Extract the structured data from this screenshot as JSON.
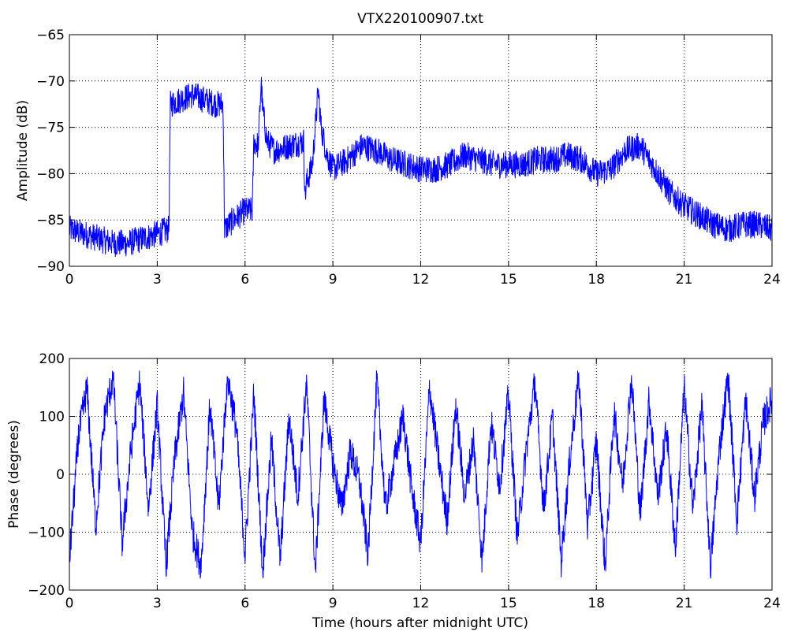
{
  "figure": {
    "title": "VTX220100907.txt",
    "xlabel": "Time (hours after midnight UTC)"
  },
  "chart_data": [
    {
      "type": "line",
      "ylabel": "Amplitude (dB)",
      "xlim": [
        0,
        24
      ],
      "ylim": [
        -90,
        -65
      ],
      "xticks": [
        0,
        3,
        6,
        9,
        12,
        15,
        18,
        21,
        24
      ],
      "yticks": [
        -90,
        -85,
        -80,
        -75,
        -70,
        -65
      ],
      "grid": true,
      "series": [
        {
          "color": "#0000ff",
          "x": [
            0,
            0.5,
            1.0,
            1.5,
            2.0,
            2.5,
            3.0,
            3.4,
            3.45,
            3.8,
            4.2,
            4.6,
            5.0,
            5.25,
            5.3,
            5.6,
            6.0,
            6.25,
            6.3,
            6.45,
            6.55,
            6.6,
            6.75,
            7.0,
            7.5,
            8.0,
            8.05,
            8.1,
            8.3,
            8.45,
            8.5,
            8.6,
            8.8,
            9.0,
            9.5,
            10.0,
            10.5,
            11.0,
            11.5,
            12.0,
            12.5,
            13.0,
            13.5,
            14.0,
            14.5,
            15.0,
            15.5,
            16.0,
            16.5,
            17.0,
            17.5,
            18.0,
            18.5,
            19.0,
            19.5,
            20.0,
            20.5,
            21.0,
            21.5,
            22.0,
            22.5,
            23.0,
            23.5,
            24.0
          ],
          "y": [
            -86.0,
            -86.5,
            -87.0,
            -87.5,
            -87.5,
            -87.0,
            -86.5,
            -86.0,
            -72.5,
            -72.0,
            -71.5,
            -72.0,
            -72.5,
            -72.5,
            -86.0,
            -85.0,
            -84.0,
            -84.0,
            -76.5,
            -77.0,
            -70.0,
            -73.0,
            -76.5,
            -77.5,
            -77.0,
            -76.5,
            -82.5,
            -81.0,
            -79.0,
            -73.0,
            -71.0,
            -75.0,
            -78.0,
            -79.5,
            -78.5,
            -77.0,
            -77.5,
            -78.5,
            -79.0,
            -79.5,
            -79.5,
            -79.0,
            -78.0,
            -78.5,
            -79.0,
            -79.0,
            -79.0,
            -78.5,
            -78.5,
            -78.0,
            -78.5,
            -80.0,
            -79.5,
            -77.5,
            -77.0,
            -79.5,
            -82.0,
            -83.5,
            -84.5,
            -85.5,
            -86.0,
            -85.5,
            -85.5,
            -86.0
          ],
          "noise_amplitude_db": 1.5
        }
      ]
    },
    {
      "type": "line",
      "ylabel": "Phase (degrees)",
      "xlim": [
        0,
        24
      ],
      "ylim": [
        -200,
        200
      ],
      "xticks": [
        0,
        3,
        6,
        9,
        12,
        15,
        18,
        21,
        24
      ],
      "yticks": [
        -200,
        -100,
        0,
        100,
        200
      ],
      "grid": true,
      "series": [
        {
          "color": "#0000ff",
          "wrap_range": [
            -180,
            180
          ],
          "x": [
            0,
            0.3,
            0.6,
            0.9,
            1.2,
            1.5,
            1.8,
            2.1,
            2.4,
            2.7,
            3.0,
            3.3,
            3.6,
            3.9,
            4.2,
            4.5,
            4.8,
            5.1,
            5.4,
            5.7,
            6.0,
            6.3,
            6.6,
            6.9,
            7.2,
            7.5,
            7.8,
            8.1,
            8.4,
            8.7,
            9.0,
            9.3,
            9.6,
            9.9,
            10.2,
            10.5,
            10.8,
            11.1,
            11.4,
            11.7,
            12.0,
            12.3,
            12.6,
            12.9,
            13.2,
            13.5,
            13.8,
            14.1,
            14.4,
            14.7,
            15.0,
            15.3,
            15.6,
            15.9,
            16.2,
            16.5,
            16.8,
            17.1,
            17.4,
            17.7,
            18.0,
            18.3,
            18.6,
            18.9,
            19.2,
            19.5,
            19.8,
            20.1,
            20.4,
            20.7,
            21.0,
            21.3,
            21.6,
            21.9,
            22.2,
            22.5,
            22.8,
            23.1,
            23.4,
            23.7,
            24.0
          ],
          "y": [
            -150,
            60,
            150,
            -90,
            100,
            170,
            -120,
            40,
            160,
            -60,
            120,
            -160,
            30,
            140,
            -100,
            -160,
            120,
            -60,
            170,
            80,
            -140,
            140,
            -170,
            60,
            -150,
            100,
            -40,
            160,
            -170,
            130,
            20,
            -60,
            40,
            -10,
            -140,
            160,
            -60,
            20,
            100,
            -30,
            -120,
            150,
            30,
            -80,
            120,
            -40,
            60,
            -150,
            90,
            -20,
            140,
            -110,
            40,
            160,
            -60,
            100,
            -150,
            30,
            170,
            -90,
            60,
            -160,
            110,
            -20,
            170,
            -70,
            130,
            -40,
            80,
            -130,
            150,
            -60,
            120,
            -160,
            40,
            170,
            -80,
            130,
            -40,
            90,
            130
          ],
          "noise_amplitude_deg": 30
        }
      ]
    }
  ]
}
